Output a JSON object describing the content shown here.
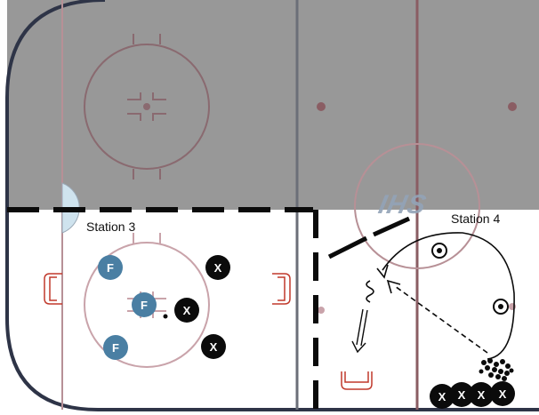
{
  "stations": {
    "station3": "Station 3",
    "station4": "Station 4"
  },
  "watermark": "IHS",
  "players": {
    "forward_label": "F",
    "opponent_label": "X"
  },
  "colors": {
    "ice_shaded": "#989898",
    "ice_white": "#ffffff",
    "board": "#2e3447",
    "rink_line": "#b79096",
    "blue_line": "#6b6f78",
    "red_line": "#8a5d63",
    "net": "#c0392b",
    "forward_token": "#4a7fa3",
    "opponent_token": "#0b0b0b",
    "crease": "#cfe3ee"
  }
}
